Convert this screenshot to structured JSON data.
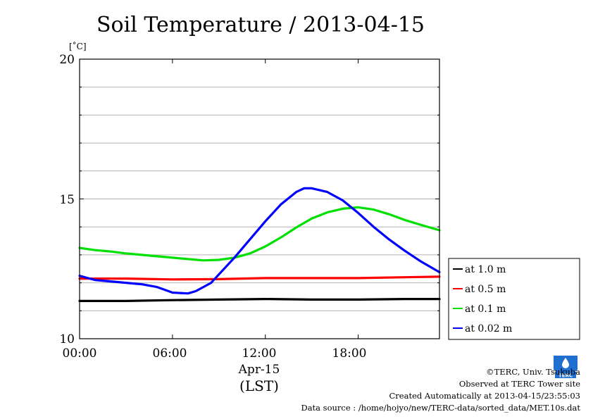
{
  "chart_data": {
    "type": "line",
    "title": "Soil Temperature / 2013-04-15",
    "ylabel": "[˚C]",
    "ylim": [
      10,
      20
    ],
    "yticks": [
      "10",
      "15",
      "20"
    ],
    "ygrid_step": 1,
    "xlim": [
      0,
      23.25
    ],
    "xticks": [
      {
        "value": 0,
        "label": "00:00"
      },
      {
        "value": 6,
        "label": "06:00"
      },
      {
        "value": 12,
        "label": "12:00"
      },
      {
        "value": 18,
        "label": "18:00"
      }
    ],
    "xlabel_date": "Apr-15",
    "xlabel_tz": "(LST)",
    "grid": true,
    "legend_position": "right-bottom-outside",
    "series": [
      {
        "name": "at 1.0 m",
        "color": "#000000",
        "x": [
          0,
          3,
          6,
          9,
          12,
          15,
          18,
          21,
          23.25
        ],
        "y": [
          11.35,
          11.35,
          11.38,
          11.4,
          11.42,
          11.4,
          11.4,
          11.42,
          11.42
        ]
      },
      {
        "name": "at 0.5 m",
        "color": "#ff0000",
        "x": [
          0,
          3,
          6,
          9,
          12,
          15,
          18,
          21,
          23.25
        ],
        "y": [
          12.15,
          12.15,
          12.12,
          12.13,
          12.17,
          12.17,
          12.17,
          12.2,
          12.22
        ]
      },
      {
        "name": "at 0.1 m",
        "color": "#00e000",
        "x": [
          0,
          1,
          2,
          3,
          4,
          5,
          6,
          7,
          8,
          9,
          10,
          11,
          12,
          13,
          14,
          15,
          16,
          17,
          18,
          19,
          20,
          21,
          22,
          23.25
        ],
        "y": [
          13.25,
          13.17,
          13.12,
          13.05,
          13.0,
          12.95,
          12.9,
          12.85,
          12.8,
          12.82,
          12.9,
          13.05,
          13.3,
          13.62,
          13.98,
          14.3,
          14.52,
          14.65,
          14.7,
          14.62,
          14.45,
          14.25,
          14.08,
          13.88
        ]
      },
      {
        "name": "at 0.02 m",
        "color": "#0000ff",
        "x": [
          0,
          1,
          2,
          3,
          4,
          5,
          5.5,
          6,
          7,
          7.5,
          8,
          8.5,
          9,
          10,
          11,
          12,
          13,
          14,
          14.5,
          15,
          16,
          17,
          18,
          19,
          20,
          21,
          22,
          23.25
        ],
        "y": [
          12.25,
          12.1,
          12.05,
          12.0,
          11.95,
          11.85,
          11.75,
          11.65,
          11.62,
          11.7,
          11.85,
          12.0,
          12.3,
          12.9,
          13.55,
          14.2,
          14.8,
          15.25,
          15.38,
          15.38,
          15.25,
          14.95,
          14.5,
          14.0,
          13.55,
          13.15,
          12.78,
          12.38
        ]
      }
    ]
  },
  "credits": {
    "copyright": "©TERC, Univ. Tsukuba",
    "site": "Observed at TERC Tower site",
    "created": "Created Automatically at 2013-04-15/23:55:03",
    "source": "Data source : /home/hojyo/new/TERC-data/sorted_data/MET.10s.dat"
  },
  "logo_text": "TERC"
}
